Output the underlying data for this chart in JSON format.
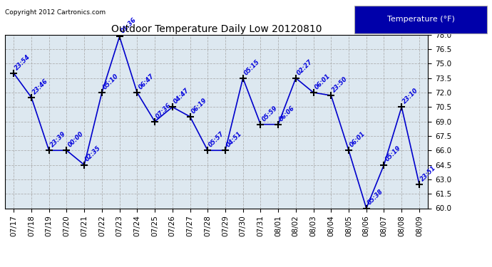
{
  "title": "Outdoor Temperature Daily Low 20120810",
  "copyright": "Copyright 2012 Cartronics.com",
  "legend_label": "Temperature (°F)",
  "ylim": [
    60.0,
    78.0
  ],
  "yticks": [
    60.0,
    61.5,
    63.0,
    64.5,
    66.0,
    67.5,
    69.0,
    70.5,
    72.0,
    73.5,
    75.0,
    76.5,
    78.0
  ],
  "categories": [
    "07/17",
    "07/18",
    "07/19",
    "07/20",
    "07/21",
    "07/22",
    "07/23",
    "07/24",
    "07/25",
    "07/26",
    "07/27",
    "07/28",
    "07/29",
    "07/30",
    "07/31",
    "08/01",
    "08/02",
    "08/03",
    "08/04",
    "08/05",
    "08/06",
    "08/07",
    "08/08",
    "08/09"
  ],
  "values": [
    74.0,
    71.5,
    66.0,
    66.0,
    64.5,
    72.0,
    77.8,
    72.0,
    69.0,
    70.5,
    69.5,
    66.0,
    66.0,
    73.5,
    68.7,
    68.7,
    73.5,
    72.0,
    71.7,
    66.0,
    60.0,
    64.5,
    70.5,
    62.5
  ],
  "labels": [
    "23:54",
    "23:46",
    "23:39",
    "00:00",
    "02:35",
    "05:10",
    "01:36",
    "06:47",
    "07:36",
    "04:47",
    "06:19",
    "05:57",
    "04:51",
    "05:15",
    "05:59",
    "06:06",
    "02:27",
    "06:01",
    "23:50",
    "06:01",
    "05:38",
    "05:19",
    "23:10",
    "23:51"
  ],
  "line_color": "#0000cc",
  "bg_color": "#dde8f0",
  "fig_bg": "#ffffff",
  "grid_color": "#aaaaaa",
  "title_color": "#000000",
  "label_color": "#0000dd",
  "marker_color": "#000000",
  "legend_bg": "#0000aa",
  "legend_text": "#ffffff",
  "border_color": "#000000"
}
